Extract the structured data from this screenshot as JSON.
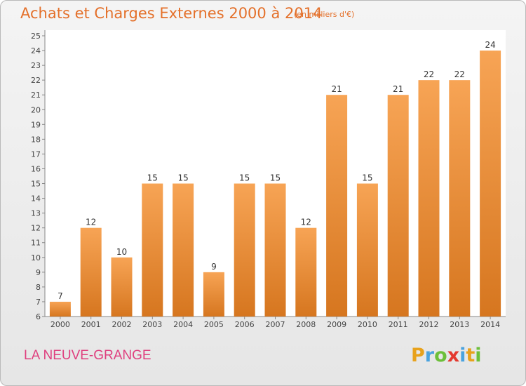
{
  "title": "Achats et Charges Externes 2000 à 2014",
  "subtitle": "(en milliers d'€)",
  "location": "LA NEUVE-GRANGE",
  "brand": "Proxiti",
  "colors": {
    "accent": "#e4702a",
    "location": "#df3f7e",
    "bar_top": "#f7a455",
    "bar_bottom": "#d6761f"
  },
  "chart_data": {
    "type": "bar",
    "title": "Achats et Charges Externes 2000 à 2014",
    "subtitle": "(en milliers d'€)",
    "xlabel": "",
    "ylabel": "",
    "categories": [
      "2000",
      "2001",
      "2002",
      "2003",
      "2004",
      "2005",
      "2006",
      "2007",
      "2008",
      "2009",
      "2010",
      "2011",
      "2012",
      "2013",
      "2014"
    ],
    "values": [
      7,
      12,
      10,
      15,
      15,
      9,
      15,
      15,
      12,
      21,
      15,
      21,
      22,
      22,
      24
    ],
    "ylim": [
      6,
      25
    ],
    "yticks": [
      6,
      7,
      8,
      9,
      10,
      11,
      12,
      13,
      14,
      15,
      16,
      17,
      18,
      19,
      20,
      21,
      22,
      23,
      24,
      25
    ],
    "grid": false,
    "legend": "none"
  }
}
